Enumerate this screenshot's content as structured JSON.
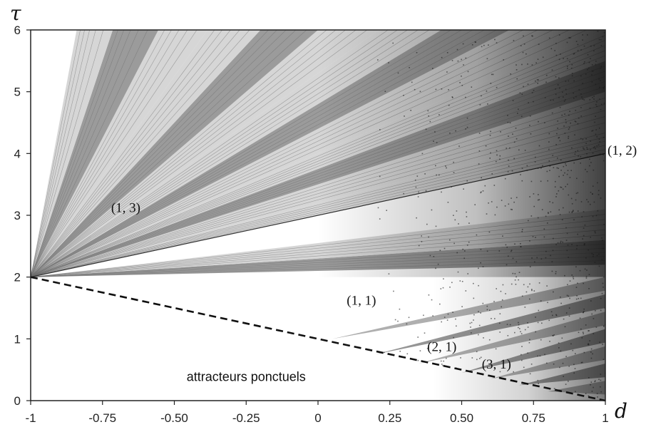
{
  "chart_data": {
    "type": "heatmap",
    "xlabel": "d",
    "ylabel": "τ",
    "xlim": [
      -1,
      1
    ],
    "ylim": [
      0,
      6
    ],
    "x_ticks": [
      {
        "value": -1,
        "label": "-1"
      },
      {
        "value": -0.75,
        "label": "-0.75"
      },
      {
        "value": -0.5,
        "label": "-0.50"
      },
      {
        "value": -0.25,
        "label": "-0.25"
      },
      {
        "value": 0,
        "label": "0"
      },
      {
        "value": 0.25,
        "label": "0.25"
      },
      {
        "value": 0.5,
        "label": "0.50"
      },
      {
        "value": 0.75,
        "label": "0.75"
      },
      {
        "value": 1,
        "label": "1"
      }
    ],
    "y_ticks": [
      {
        "value": 0,
        "label": "0"
      },
      {
        "value": 1,
        "label": "1"
      },
      {
        "value": 2,
        "label": "2"
      },
      {
        "value": 3,
        "label": "3"
      },
      {
        "value": 4,
        "label": "4"
      },
      {
        "value": 5,
        "label": "5"
      },
      {
        "value": 6,
        "label": "6"
      }
    ],
    "boundary_line": {
      "style": "dashed",
      "from": [
        -1,
        2
      ],
      "to": [
        1,
        0
      ]
    },
    "fan_upper_apex": [
      -1,
      2
    ],
    "fan_upper_slopes": [
      0.1,
      0.3,
      0.55,
      0.75,
      1.0,
      1.2,
      1.5,
      1.75,
      2.0,
      2.4,
      2.8,
      3.3,
      4.0,
      5.0,
      6.5,
      9.0,
      14.0,
      25.0
    ],
    "fan_upper_gaps": [
      {
        "label": "(1, 3)",
        "slope_from": 0.55,
        "slope_to": 1.0,
        "label_at": [
          -0.72,
          3.05
        ]
      },
      {
        "label": "(1, 2)",
        "slope_from": 0.95,
        "slope_to": 1.05,
        "label_at": [
          1.05,
          4.05
        ]
      }
    ],
    "lower_gap": {
      "label": "(1, 1)",
      "label_at": [
        0.1,
        1.55
      ]
    },
    "lower_fan_labels": [
      {
        "label": "(2, 1)",
        "label_at": [
          0.38,
          0.8
        ]
      },
      {
        "label": "(3, 1)",
        "label_at": [
          0.57,
          0.52
        ]
      }
    ],
    "region_note": {
      "label": "attracteurs ponctuels",
      "label_at": [
        -0.25,
        0.32
      ]
    },
    "colors": {
      "dense": "#1a1a1a",
      "medium": "#8a8a8a",
      "light": "#cfcfcf",
      "empty": "#ffffff"
    }
  }
}
